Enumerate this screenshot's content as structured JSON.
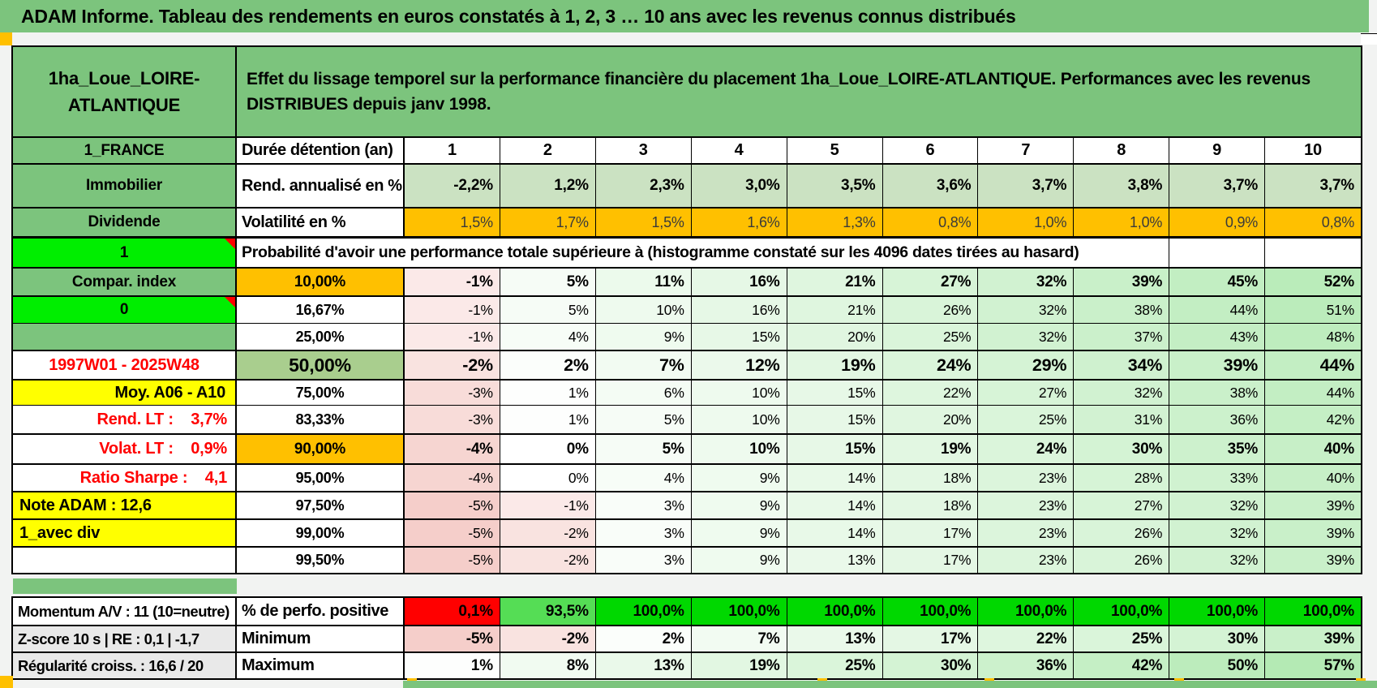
{
  "title": "ADAM Informe. Tableau des rendements en euros constatés à 1, 2, 3 … 10 ans avec les revenus connus distribués",
  "palette": {
    "green_header": "#7CC47D",
    "green_50": "#A9CE8E",
    "green_bright": "#00EE00",
    "green_93": "#55DD55",
    "green_100": "#00D800",
    "orange": "#FFC000",
    "yellow": "#FFFF00",
    "red": "#FF0000",
    "gray_label": "#E9E9E9",
    "yield_bg": "#CBE2C2",
    "tint_neg": "#F5CECA",
    "tint_pos": "#B4EAB4"
  },
  "header": {
    "product": "1ha_Loue_LOIRE-ATLANTIQUE",
    "description": "Effet du lissage temporel sur la performance financière du placement 1ha_Loue_LOIRE-ATLANTIQUE. Performances avec les revenus DISTRIBUES depuis janv 1998."
  },
  "duration_row": {
    "a": "1_FRANCE",
    "b": "Durée détention (an)",
    "values": [
      "1",
      "2",
      "3",
      "4",
      "5",
      "6",
      "7",
      "8",
      "9",
      "10"
    ]
  },
  "yield_row": {
    "a": "Immobilier",
    "b": "Rend. annualisé en %",
    "values": [
      "-2,2%",
      "1,2%",
      "2,3%",
      "3,0%",
      "3,5%",
      "3,6%",
      "3,7%",
      "3,8%",
      "3,7%",
      "3,7%"
    ]
  },
  "vol_row": {
    "a": "Dividende",
    "b": "Volatilité en %",
    "values": [
      "1,5%",
      "1,7%",
      "1,5%",
      "1,6%",
      "1,3%",
      "0,8%",
      "1,0%",
      "1,0%",
      "0,9%",
      "0,8%"
    ]
  },
  "prob_banner": {
    "a": "1",
    "text": "Probabilité d'avoir une performance totale supérieure à (histogramme constaté sur les 4096 dates tirées au hasard)"
  },
  "prob_rows": [
    {
      "a": "Compar. index",
      "aStyle": "green",
      "p": "10,00%",
      "pStyle": "orange",
      "emph": "strong",
      "values": [
        "-1%",
        "5%",
        "11%",
        "16%",
        "21%",
        "27%",
        "32%",
        "39%",
        "45%",
        "52%"
      ]
    },
    {
      "a": "0",
      "aStyle": "bright",
      "marker": true,
      "p": "16,67%",
      "pStyle": "plain",
      "emph": "",
      "values": [
        "-1%",
        "5%",
        "10%",
        "16%",
        "21%",
        "26%",
        "32%",
        "38%",
        "44%",
        "51%"
      ]
    },
    {
      "a": "",
      "aStyle": "green",
      "p": "25,00%",
      "pStyle": "plain",
      "emph": "",
      "values": [
        "-1%",
        "4%",
        "9%",
        "15%",
        "20%",
        "25%",
        "32%",
        "37%",
        "43%",
        "48%"
      ]
    },
    {
      "a": "1997W01 - 2025W48",
      "aStyle": "redc",
      "p": "50,00%",
      "pStyle": "greenbig",
      "emph": "big",
      "values": [
        "-2%",
        "2%",
        "7%",
        "12%",
        "19%",
        "24%",
        "29%",
        "34%",
        "39%",
        "44%"
      ]
    },
    {
      "a": "Moy. A06 - A10",
      "aStyle": "ylr",
      "p": "75,00%",
      "pStyle": "plain",
      "emph": "",
      "values": [
        "-3%",
        "1%",
        "6%",
        "10%",
        "15%",
        "22%",
        "27%",
        "32%",
        "38%",
        "44%"
      ]
    },
    {
      "a": "Rend. LT :    3,7%",
      "aStyle": "rr",
      "p": "83,33%",
      "pStyle": "plain",
      "emph": "",
      "values": [
        "-3%",
        "1%",
        "5%",
        "10%",
        "15%",
        "20%",
        "25%",
        "31%",
        "36%",
        "42%"
      ]
    },
    {
      "a": "Volat. LT :    0,9%",
      "aStyle": "rr",
      "p": "90,00%",
      "pStyle": "orange",
      "emph": "strong",
      "values": [
        "-4%",
        "0%",
        "5%",
        "10%",
        "15%",
        "19%",
        "24%",
        "30%",
        "35%",
        "40%"
      ]
    },
    {
      "a": "Ratio Sharpe :    4,1",
      "aStyle": "rr",
      "p": "95,00%",
      "pStyle": "plain",
      "emph": "",
      "values": [
        "-4%",
        "0%",
        "4%",
        "9%",
        "14%",
        "18%",
        "23%",
        "28%",
        "33%",
        "40%"
      ]
    },
    {
      "a": "Note ADAM : 12,6",
      "aStyle": "yll",
      "p": "97,50%",
      "pStyle": "plain",
      "emph": "",
      "values": [
        "-5%",
        "-1%",
        "3%",
        "9%",
        "14%",
        "18%",
        "23%",
        "27%",
        "32%",
        "39%"
      ]
    },
    {
      "a": "1_avec div",
      "aStyle": "yll",
      "p": "99,00%",
      "pStyle": "plain",
      "emph": "",
      "values": [
        "-5%",
        "-2%",
        "3%",
        "9%",
        "14%",
        "17%",
        "23%",
        "26%",
        "32%",
        "39%"
      ]
    },
    {
      "a": "",
      "aStyle": "plain",
      "p": "99,50%",
      "pStyle": "plain",
      "emph": "",
      "values": [
        "-5%",
        "-2%",
        "3%",
        "9%",
        "13%",
        "17%",
        "23%",
        "26%",
        "32%",
        "39%"
      ]
    }
  ],
  "footer_rows": [
    {
      "a": "Momentum A/V : 11 (10=neutre)",
      "aStyle": "white",
      "b": "% de perfo. positive",
      "mode": "positive",
      "values": [
        "0,1%",
        "93,5%",
        "100,0%",
        "100,0%",
        "100,0%",
        "100,0%",
        "100,0%",
        "100,0%",
        "100,0%",
        "100,0%"
      ]
    },
    {
      "a": "Z-score 10 s | RE : 0,1 | -1,7",
      "aStyle": "gray",
      "b": "Minimum",
      "mode": "tint",
      "values": [
        "-5%",
        "-2%",
        "2%",
        "7%",
        "13%",
        "17%",
        "22%",
        "25%",
        "30%",
        "39%"
      ]
    },
    {
      "a": "Régularité croiss. : 16,6 / 20",
      "aStyle": "gray",
      "b": "Maximum",
      "mode": "tint",
      "values": [
        "1%",
        "8%",
        "13%",
        "19%",
        "25%",
        "30%",
        "36%",
        "42%",
        "50%",
        "57%"
      ]
    }
  ]
}
